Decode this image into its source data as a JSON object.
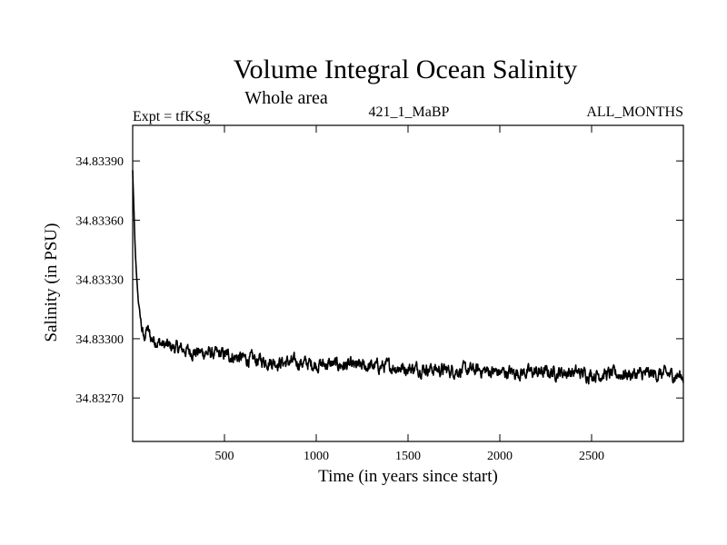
{
  "chart_data": {
    "type": "line",
    "title": "Volume Integral Ocean Salinity",
    "subtitle": "Whole area",
    "annotations": {
      "left": "Expt = tfKSg",
      "center": "421_1_MaBP",
      "right": "ALL_MONTHS"
    },
    "xlabel": "Time (in years since start)",
    "ylabel": "Salinity (in PSU)",
    "xlim": [
      0,
      3000
    ],
    "ylim": [
      34.83248,
      34.83408
    ],
    "x_ticks": [
      500,
      1000,
      1500,
      2000,
      2500
    ],
    "x_tick_labels": [
      "500",
      "1000",
      "1500",
      "2000",
      "2500"
    ],
    "y_ticks": [
      34.8327,
      34.833,
      34.8333,
      34.8336,
      34.8339
    ],
    "y_tick_labels": [
      "34.83270",
      "34.83300",
      "34.83330",
      "34.83360",
      "34.83390"
    ],
    "grid": false,
    "series": [
      {
        "name": "Salinity",
        "x": [
          0,
          5,
          10,
          15,
          20,
          30,
          40,
          50,
          60,
          80,
          100,
          130,
          160,
          200,
          250,
          300,
          350,
          400,
          450,
          500,
          600,
          700,
          800,
          900,
          1000,
          1100,
          1200,
          1300,
          1400,
          1500,
          1600,
          1700,
          1800,
          1900,
          2000,
          2100,
          2200,
          2300,
          2400,
          2500,
          2600,
          2700,
          2800,
          2900,
          3000
        ],
        "values": [
          34.83385,
          34.8337,
          34.83355,
          34.83342,
          34.83333,
          34.8332,
          34.83312,
          34.83305,
          34.833,
          34.83305,
          34.833,
          34.83299,
          34.83297,
          34.83296,
          34.83295,
          34.83294,
          34.83293,
          34.83293,
          34.83292,
          34.83292,
          34.8329,
          34.83289,
          34.83288,
          34.83288,
          34.83287,
          34.83287,
          34.83286,
          34.83286,
          34.83286,
          34.83285,
          34.83285,
          34.83284,
          34.83284,
          34.83284,
          34.83283,
          34.83283,
          34.83283,
          34.83283,
          34.83283,
          34.83282,
          34.83282,
          34.83282,
          34.83282,
          34.83282,
          34.83281
        ],
        "noise_amplitude": 5e-05,
        "color": "#000000"
      }
    ]
  }
}
